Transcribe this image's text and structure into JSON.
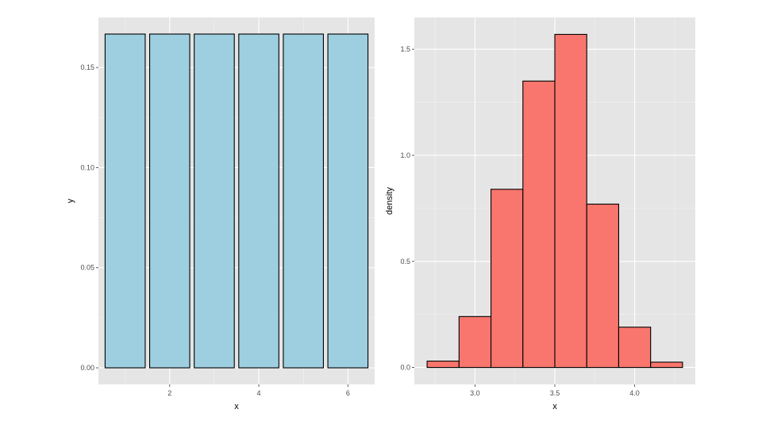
{
  "chart_data": [
    {
      "type": "bar",
      "title": "",
      "xlabel": "x",
      "ylabel": "y",
      "categories": [
        1,
        2,
        3,
        4,
        5,
        6
      ],
      "values": [
        0.1667,
        0.1667,
        0.1667,
        0.1667,
        0.1667,
        0.1667
      ],
      "bar_width": 0.9,
      "xlim": [
        0.4,
        6.6
      ],
      "ylim": [
        -0.0083,
        0.175
      ],
      "x_ticks": [
        2,
        4,
        6
      ],
      "x_tick_labels": [
        "2",
        "4",
        "6"
      ],
      "y_ticks": [
        0,
        0.05,
        0.1,
        0.15
      ],
      "y_tick_labels": [
        "0.00",
        "0.05",
        "0.10",
        "0.15"
      ],
      "fill": "#9ecfe0",
      "stroke": "#000000",
      "panel_background": "#e5e5e5",
      "grid": true
    },
    {
      "type": "histogram",
      "title": "",
      "xlabel": "x",
      "ylabel": "density",
      "bins": [
        {
          "x0": 2.7,
          "x1": 2.9,
          "density": 0.03
        },
        {
          "x0": 2.9,
          "x1": 3.1,
          "density": 0.24
        },
        {
          "x0": 3.1,
          "x1": 3.3,
          "density": 0.84
        },
        {
          "x0": 3.3,
          "x1": 3.5,
          "density": 1.35
        },
        {
          "x0": 3.5,
          "x1": 3.7,
          "density": 1.57
        },
        {
          "x0": 3.7,
          "x1": 3.9,
          "density": 0.77
        },
        {
          "x0": 3.9,
          "x1": 4.1,
          "density": 0.19
        },
        {
          "x0": 4.1,
          "x1": 4.3,
          "density": 0.025
        }
      ],
      "xlim": [
        2.62,
        4.38
      ],
      "ylim": [
        -0.08,
        1.65
      ],
      "x_ticks": [
        3.0,
        3.5,
        4.0
      ],
      "x_tick_labels": [
        "3.0",
        "3.5",
        "4.0"
      ],
      "y_ticks": [
        0,
        0.5,
        1.0,
        1.5
      ],
      "y_tick_labels": [
        "0.0",
        "0.5",
        "1.0",
        "1.5"
      ],
      "fill": "#f8766d",
      "stroke": "#000000",
      "panel_background": "#e5e5e5",
      "grid": true
    }
  ]
}
